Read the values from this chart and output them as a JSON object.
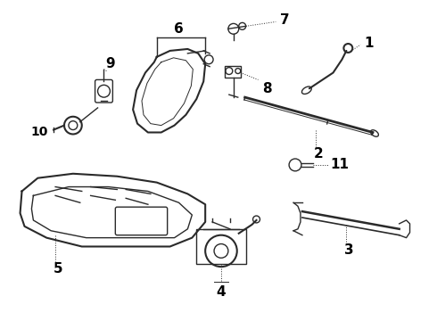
{
  "bg_color": "#ffffff",
  "line_color": "#2a2a2a",
  "label_color": "#000000",
  "fig_width": 4.9,
  "fig_height": 3.6,
  "dpi": 100
}
